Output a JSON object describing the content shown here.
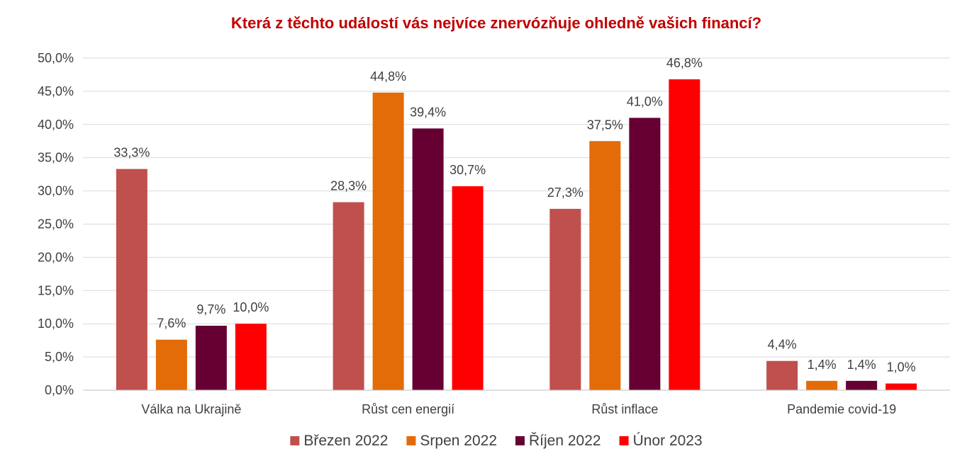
{
  "chart_data": {
    "type": "bar",
    "title": "Která z těchto událostí vás nejvíce znervózňuje ohledně vašich financí?",
    "xlabel": "",
    "ylabel": "",
    "ylim": [
      0,
      50
    ],
    "yticks": [
      0,
      5,
      10,
      15,
      20,
      25,
      30,
      35,
      40,
      45,
      50
    ],
    "ytick_labels": [
      "0,0%",
      "5,0%",
      "10,0%",
      "15,0%",
      "20,0%",
      "25,0%",
      "30,0%",
      "35,0%",
      "40,0%",
      "45,0%",
      "50,0%"
    ],
    "grid": true,
    "legend_position": "bottom",
    "categories": [
      "Válka na Ukrajině",
      "Růst cen energií",
      "Růst inflace",
      "Pandemie covid-19"
    ],
    "series": [
      {
        "name": "Březen 2022",
        "color": "#C0504D",
        "values": [
          33.3,
          28.3,
          27.3,
          4.4
        ],
        "labels": [
          "33,3%",
          "28,3%",
          "27,3%",
          "4,4%"
        ]
      },
      {
        "name": "Srpen 2022",
        "color": "#E36C09",
        "values": [
          7.6,
          44.8,
          37.5,
          1.4
        ],
        "labels": [
          "7,6%",
          "44,8%",
          "37,5%",
          "1,4%"
        ]
      },
      {
        "name": "Říjen 2022",
        "color": "#660033",
        "values": [
          9.7,
          39.4,
          41.0,
          1.4
        ],
        "labels": [
          "9,7%",
          "39,4%",
          "41,0%",
          "1,4%"
        ]
      },
      {
        "name": "Únor 2023",
        "color": "#FF0000",
        "values": [
          10.0,
          30.7,
          46.8,
          1.0
        ],
        "labels": [
          "10,0%",
          "30,7%",
          "46,8%",
          "1,0%"
        ]
      }
    ]
  }
}
